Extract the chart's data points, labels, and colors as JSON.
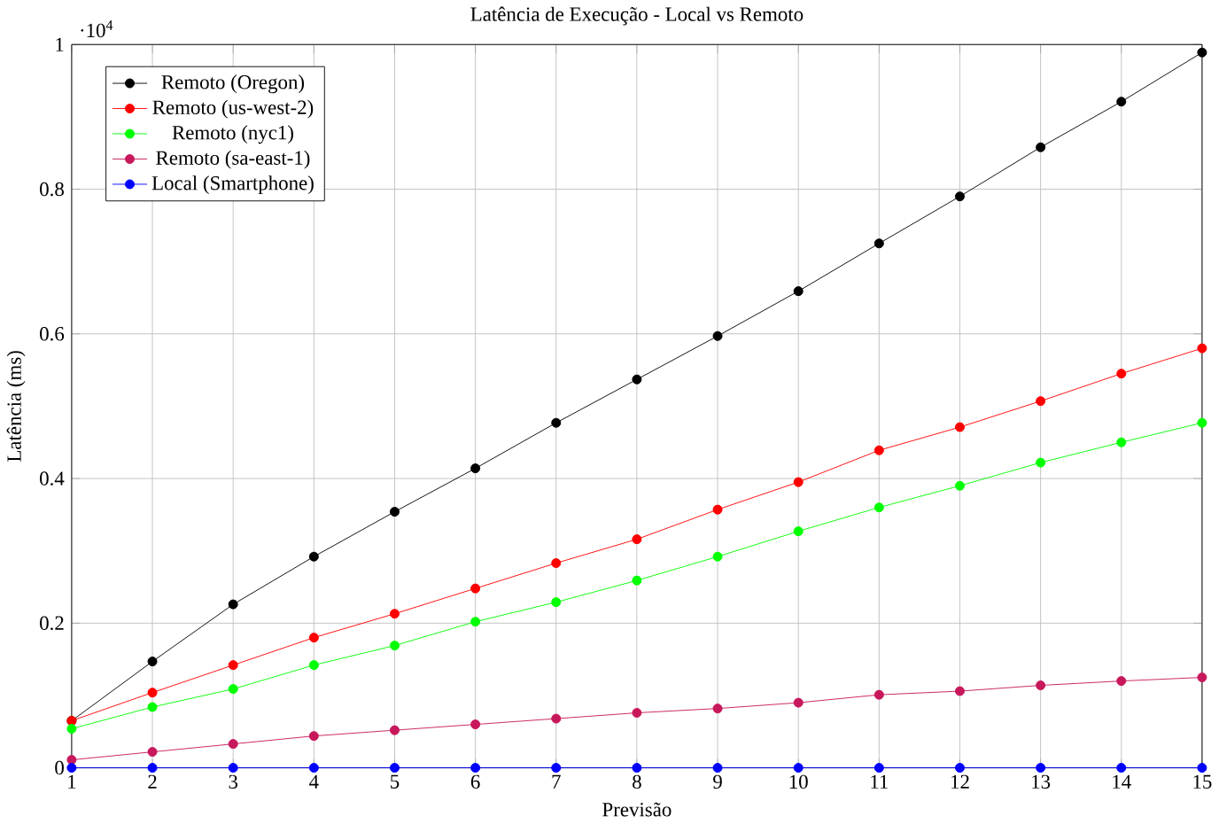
{
  "chart_data": {
    "type": "line",
    "title": "Latência de Execução - Local vs Remoto",
    "xlabel": "Previsão",
    "ylabel": "Latência (ms)",
    "annotations": [
      "·10$^{4}$"
    ],
    "x": [
      1,
      2,
      3,
      4,
      5,
      6,
      7,
      8,
      9,
      10,
      11,
      12,
      13,
      14,
      15
    ],
    "series": [
      {
        "name": "Remoto (Oregon)",
        "color": "#000000",
        "values": [
          0.065,
          0.147,
          0.226,
          0.292,
          0.354,
          0.414,
          0.477,
          0.537,
          0.597,
          0.659,
          0.725,
          0.79,
          0.858,
          0.921,
          0.989
        ]
      },
      {
        "name": "Remoto (us-west-2)",
        "color": "#ff0000",
        "values": [
          0.065,
          0.104,
          0.142,
          0.18,
          0.213,
          0.248,
          0.283,
          0.316,
          0.357,
          0.395,
          0.439,
          0.471,
          0.507,
          0.545,
          0.58
        ]
      },
      {
        "name": "Remoto (nyc1)",
        "color": "#00ff00",
        "values": [
          0.054,
          0.084,
          0.109,
          0.142,
          0.169,
          0.202,
          0.229,
          0.259,
          0.292,
          0.327,
          0.36,
          0.39,
          0.422,
          0.45,
          0.477
        ]
      },
      {
        "name": "Remoto (sa-east-1)",
        "color": "#c8185c",
        "values": [
          0.011,
          0.022,
          0.033,
          0.044,
          0.052,
          0.06,
          0.068,
          0.076,
          0.082,
          0.09,
          0.101,
          0.106,
          0.114,
          0.12,
          0.125
        ]
      },
      {
        "name": "Local (Smartphone)",
        "color": "#0000ff",
        "values": [
          0,
          0,
          0,
          0,
          0,
          0,
          0,
          0,
          0,
          0,
          0,
          0,
          0,
          0,
          0
        ]
      }
    ],
    "xlim": [
      1,
      15
    ],
    "ylim": [
      0,
      1
    ],
    "xticks": [
      1,
      2,
      3,
      4,
      5,
      6,
      7,
      8,
      9,
      10,
      11,
      12,
      13,
      14,
      15
    ],
    "yticks": [
      0,
      0.2,
      0.4,
      0.6,
      0.8,
      1
    ],
    "grid": true,
    "legend": "top left",
    "marker": "circle",
    "line_style": "solid"
  }
}
